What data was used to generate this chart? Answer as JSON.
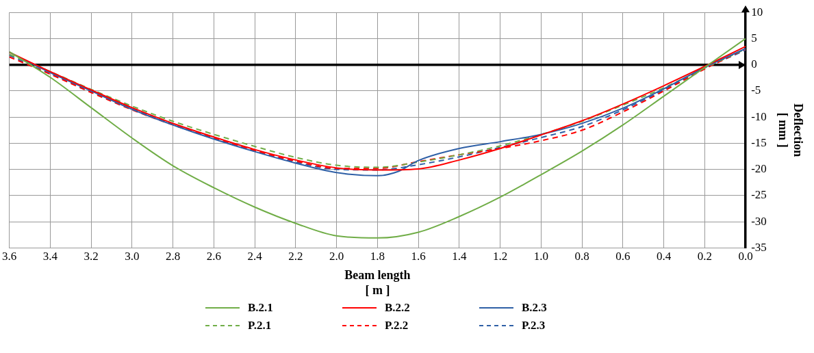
{
  "chart_data": {
    "type": "line",
    "xlabel": "Beam length\n[ m ]",
    "ylabel": "Deflection\n[ mm ]",
    "x": [
      3.6,
      3.4,
      3.2,
      3.0,
      2.8,
      2.6,
      2.4,
      2.2,
      2.0,
      1.8,
      1.6,
      1.4,
      1.2,
      1.0,
      0.8,
      0.6,
      0.4,
      0.2,
      0.0
    ],
    "xlim": [
      3.6,
      0
    ],
    "xticks": [
      3.6,
      3.4,
      3.2,
      {
        "value": 3,
        "label": "3.0"
      },
      2.8,
      2.6,
      2.4,
      2.2,
      {
        "value": 2,
        "label": "2.0"
      },
      1.8,
      1.6,
      1.4,
      1.2,
      {
        "value": 1,
        "label": "1.0"
      },
      0.8,
      0.6,
      0.4,
      0.2,
      {
        "value": 0,
        "label": "0.0"
      }
    ],
    "ylim": [
      -35,
      10
    ],
    "yticks": [
      -35,
      -30,
      -25,
      -20,
      -15,
      -10,
      -5,
      0,
      5,
      10
    ],
    "grid": true,
    "legend": "bottom",
    "marker": "none",
    "series": [
      {
        "name": "B.2.1",
        "color": "#70ad47",
        "line_style": "solid",
        "values": [
          2.5,
          -2.4,
          -8.2,
          -14,
          -19.3,
          -23.5,
          -27.2,
          -30.3,
          -32.7,
          -33.1,
          -32,
          -29,
          -25.3,
          -21,
          -16.5,
          -11.5,
          -6,
          -0.5,
          5
        ]
      },
      {
        "name": "B.2.2",
        "color": "#ff0000",
        "line_style": "solid",
        "values": [
          2.4,
          -1.3,
          -4.8,
          -8.2,
          -11.2,
          -13.8,
          -16.2,
          -18.2,
          -19.7,
          -20.1,
          -19.9,
          -18.2,
          -16,
          -13.4,
          -10.7,
          -7.5,
          -4,
          -0.3,
          3.5
        ]
      },
      {
        "name": "B.2.3",
        "color": "#2e5fa6",
        "line_style": "solid",
        "x": [
          3.6,
          3.4,
          3.2,
          3.0,
          2.8,
          2.6,
          2.4,
          2.2,
          2.0,
          1.8,
          1.7,
          1.6,
          1.4,
          1.2,
          1.0,
          0.8,
          0.6,
          0.4,
          0.2,
          0.0
        ],
        "values": [
          2.4,
          -1.5,
          -5,
          -8.5,
          -11.5,
          -14.2,
          -16.6,
          -18.8,
          -20.6,
          -21.2,
          -20.4,
          -18.3,
          -16,
          -14.7,
          -13.3,
          -11.2,
          -8.3,
          -4.6,
          -0.5,
          3.1
        ]
      },
      {
        "name": "P.2.1",
        "color": "#70ad47",
        "line_style": "dashed",
        "values": [
          2,
          -1.3,
          -4.7,
          -7.9,
          -10.8,
          -13.3,
          -15.6,
          -17.7,
          -19.2,
          -19.6,
          -18.6,
          -17.2,
          -15.5,
          -13.3,
          -10.8,
          -7.7,
          -4.4,
          -0.6,
          3
        ]
      },
      {
        "name": "P.2.2",
        "color": "#ff0000",
        "line_style": "dashed",
        "values": [
          1.5,
          -1.8,
          -5.3,
          -8.6,
          -11.5,
          -14,
          -16.4,
          -18.4,
          -19.8,
          -19.8,
          -18.5,
          -17.2,
          -16,
          -14.5,
          -12.5,
          -9,
          -5,
          -0.8,
          3
        ]
      },
      {
        "name": "P.2.3",
        "color": "#2e5fa6",
        "line_style": "dashed",
        "values": [
          1.8,
          -1.7,
          -5.1,
          -8.4,
          -11.4,
          -14.1,
          -16.5,
          -18.6,
          -20,
          -20.1,
          -19.1,
          -17.6,
          -15.8,
          -13.9,
          -11.8,
          -8.6,
          -4.8,
          -0.7,
          2.8
        ]
      }
    ]
  }
}
